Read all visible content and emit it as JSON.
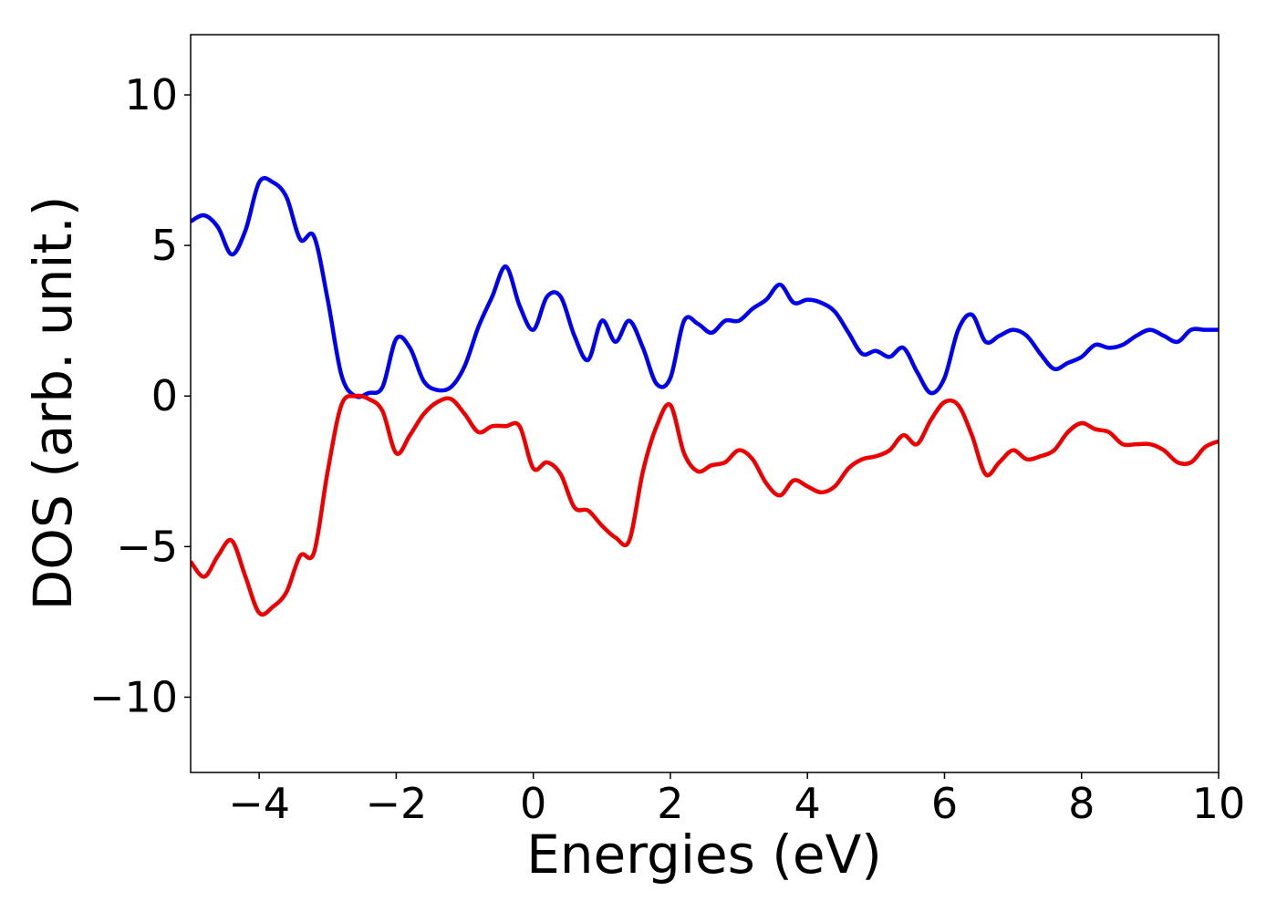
{
  "chart_data": {
    "type": "line",
    "title": "",
    "xlabel": "Energies (eV)",
    "ylabel": "DOS (arb. unit.)",
    "xlim": [
      -5,
      10
    ],
    "ylim": [
      -12.5,
      12
    ],
    "grid": false,
    "legend": "none",
    "x_ticks": [
      {
        "value": -4,
        "label": "−4"
      },
      {
        "value": -2,
        "label": "−2"
      },
      {
        "value": 0,
        "label": "0"
      },
      {
        "value": 2,
        "label": "2"
      },
      {
        "value": 4,
        "label": "4"
      },
      {
        "value": 6,
        "label": "6"
      },
      {
        "value": 8,
        "label": "8"
      },
      {
        "value": 10,
        "label": "10"
      }
    ],
    "y_ticks": [
      {
        "value": -10,
        "label": "−10"
      },
      {
        "value": -5,
        "label": "−5"
      },
      {
        "value": 0,
        "label": "0"
      },
      {
        "value": 5,
        "label": "5"
      },
      {
        "value": 10,
        "label": "10"
      }
    ],
    "series": [
      {
        "color": "#0000ee",
        "x": [
          -5.0,
          -4.8,
          -4.6,
          -4.4,
          -4.2,
          -4.0,
          -3.8,
          -3.6,
          -3.4,
          -3.2,
          -3.0,
          -2.8,
          -2.6,
          -2.4,
          -2.2,
          -2.0,
          -1.8,
          -1.6,
          -1.4,
          -1.2,
          -1.0,
          -0.8,
          -0.6,
          -0.4,
          -0.2,
          0.0,
          0.2,
          0.4,
          0.6,
          0.8,
          1.0,
          1.2,
          1.4,
          1.6,
          1.8,
          2.0,
          2.2,
          2.4,
          2.6,
          2.8,
          3.0,
          3.2,
          3.4,
          3.6,
          3.8,
          4.0,
          4.2,
          4.4,
          4.6,
          4.8,
          5.0,
          5.2,
          5.4,
          5.6,
          5.8,
          6.0,
          6.2,
          6.4,
          6.6,
          6.8,
          7.0,
          7.2,
          7.4,
          7.6,
          7.8,
          8.0,
          8.2,
          8.4,
          8.6,
          8.8,
          9.0,
          9.2,
          9.4,
          9.6,
          9.8,
          10.0
        ],
        "values": [
          5.8,
          6.0,
          5.6,
          4.7,
          5.5,
          7.1,
          7.1,
          6.6,
          5.2,
          5.3,
          3.2,
          0.7,
          0.0,
          0.1,
          0.3,
          1.9,
          1.6,
          0.5,
          0.2,
          0.3,
          1.0,
          2.3,
          3.3,
          4.3,
          3.0,
          2.2,
          3.3,
          3.3,
          2.0,
          1.2,
          2.5,
          1.8,
          2.5,
          1.6,
          0.4,
          0.6,
          2.5,
          2.4,
          2.1,
          2.5,
          2.5,
          2.9,
          3.2,
          3.7,
          3.1,
          3.2,
          3.1,
          2.8,
          2.1,
          1.4,
          1.5,
          1.3,
          1.6,
          0.8,
          0.1,
          0.6,
          2.2,
          2.7,
          1.8,
          2.0,
          2.2,
          2.0,
          1.4,
          0.9,
          1.1,
          1.3,
          1.7,
          1.6,
          1.7,
          2.0,
          2.2,
          2.0,
          1.8,
          2.2,
          2.2,
          2.2
        ]
      },
      {
        "color": "#ee0000",
        "x": [
          -5.0,
          -4.8,
          -4.6,
          -4.4,
          -4.2,
          -4.0,
          -3.8,
          -3.6,
          -3.4,
          -3.2,
          -3.0,
          -2.8,
          -2.6,
          -2.4,
          -2.2,
          -2.0,
          -1.8,
          -1.6,
          -1.4,
          -1.2,
          -1.0,
          -0.8,
          -0.6,
          -0.4,
          -0.2,
          0.0,
          0.2,
          0.4,
          0.6,
          0.8,
          1.0,
          1.2,
          1.4,
          1.6,
          1.8,
          2.0,
          2.2,
          2.4,
          2.6,
          2.8,
          3.0,
          3.2,
          3.4,
          3.6,
          3.8,
          4.0,
          4.2,
          4.4,
          4.6,
          4.8,
          5.0,
          5.2,
          5.4,
          5.6,
          5.8,
          6.0,
          6.2,
          6.4,
          6.6,
          6.8,
          7.0,
          7.2,
          7.4,
          7.6,
          7.8,
          8.0,
          8.2,
          8.4,
          8.6,
          8.8,
          9.0,
          9.2,
          9.4,
          9.6,
          9.8,
          10.0
        ],
        "values": [
          -5.5,
          -6.0,
          -5.3,
          -4.8,
          -6.0,
          -7.2,
          -7.0,
          -6.5,
          -5.3,
          -5.2,
          -2.5,
          -0.3,
          0.0,
          -0.1,
          -0.5,
          -1.9,
          -1.3,
          -0.6,
          -0.2,
          -0.1,
          -0.6,
          -1.2,
          -1.0,
          -1.0,
          -1.0,
          -2.4,
          -2.2,
          -2.6,
          -3.7,
          -3.8,
          -4.3,
          -4.7,
          -4.8,
          -2.5,
          -1.0,
          -0.3,
          -1.9,
          -2.5,
          -2.3,
          -2.2,
          -1.8,
          -2.1,
          -2.9,
          -3.3,
          -2.8,
          -3.0,
          -3.2,
          -3.0,
          -2.4,
          -2.1,
          -2.0,
          -1.8,
          -1.3,
          -1.6,
          -0.8,
          -0.2,
          -0.3,
          -1.3,
          -2.6,
          -2.2,
          -1.8,
          -2.1,
          -2.0,
          -1.8,
          -1.2,
          -0.9,
          -1.1,
          -1.2,
          -1.6,
          -1.6,
          -1.6,
          -1.8,
          -2.2,
          -2.2,
          -1.7,
          -1.5
        ]
      }
    ]
  }
}
